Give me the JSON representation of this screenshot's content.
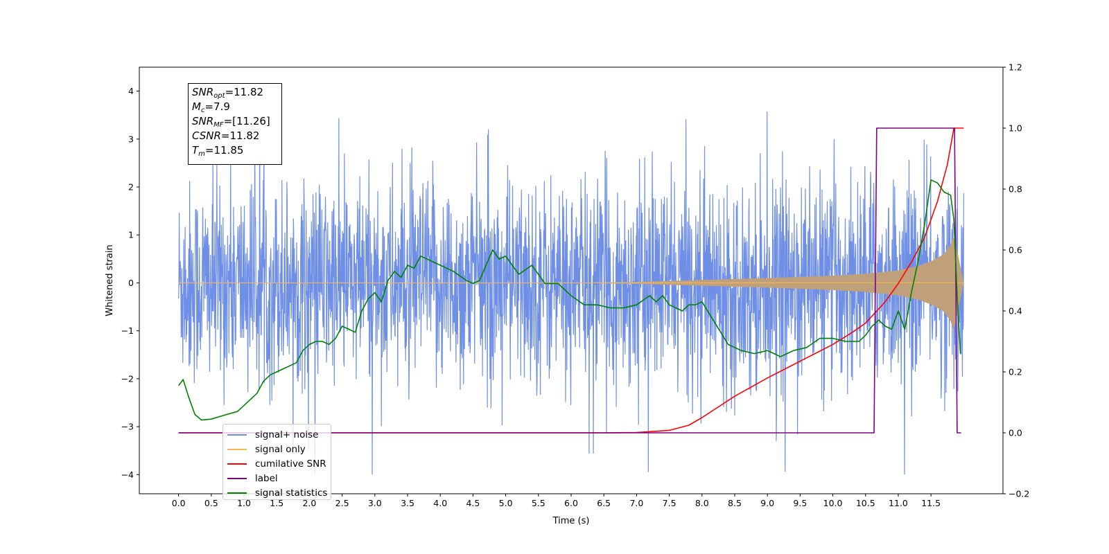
{
  "chart_data": {
    "type": "line",
    "xlabel": "Time (s)",
    "ylabel": "Whitened strain",
    "xlim": [
      -0.6,
      12.6
    ],
    "ylim": [
      -4.4,
      4.5
    ],
    "y2lim": [
      -0.2,
      1.2
    ],
    "xticks": [
      "0.0",
      "0.5",
      "1.0",
      "1.5",
      "2.0",
      "2.5",
      "3.0",
      "3.5",
      "4.0",
      "4.5",
      "5.0",
      "5.5",
      "6.0",
      "6.5",
      "7.0",
      "7.5",
      "8.0",
      "8.5",
      "9.0",
      "9.5",
      "10.0",
      "10.5",
      "11.0",
      "11.5"
    ],
    "yticks": [
      "4",
      "3",
      "2",
      "1",
      "0",
      "−1",
      "−2",
      "−3",
      "−4"
    ],
    "y2ticks": [
      "1.2",
      "1.0",
      "0.8",
      "0.6",
      "0.4",
      "0.2",
      "0.0",
      "−0.2"
    ],
    "colors": {
      "signal_noise": "#6f8fe6",
      "signal_only": "#f5b655",
      "cumulative_snr": "#ff0000",
      "label": "#800080",
      "signal_statistics": "#008000",
      "signal_band": "#c0a07a"
    },
    "annotation": {
      "snr_opt": {
        "var": "SNR",
        "sub": "opt",
        "value": "=11.82"
      },
      "mc": {
        "var": "M",
        "sub": "c",
        "value": "=7.9"
      },
      "snr_mf": {
        "var": "SNR",
        "sub": "MF",
        "value": "=[11.26]"
      },
      "csnr": {
        "var": "CSNR",
        "sub": "",
        "value": "=11.82"
      },
      "tm": {
        "var": "T",
        "sub": "m",
        "value": "=11.85"
      }
    },
    "legend": {
      "placement": "lower-left",
      "entries": [
        "signal+ noise",
        "signal only",
        "cumilative SNR",
        "label",
        "signal statistics"
      ]
    },
    "series": [
      {
        "name": "signal+ noise",
        "axis": "left",
        "style": "noise-envelope",
        "t_range": [
          0.0,
          12.0
        ],
        "band_sigma": 1.0,
        "peak_max": 4.1,
        "peak_min": -4.0
      },
      {
        "name": "signal only",
        "axis": "left",
        "style": "chirp-envelope",
        "x": [
          0.0,
          6.0,
          7.0,
          8.0,
          9.0,
          10.0,
          10.5,
          11.0,
          11.3,
          11.5,
          11.7,
          11.8,
          11.85,
          12.0
        ],
        "amplitude": [
          0.0,
          0.0,
          0.02,
          0.06,
          0.1,
          0.15,
          0.19,
          0.26,
          0.35,
          0.45,
          0.6,
          0.8,
          1.0,
          0.0
        ]
      },
      {
        "name": "cumilative SNR",
        "axis": "right",
        "x": [
          0.0,
          6.5,
          7.0,
          7.5,
          7.8,
          8.0,
          8.5,
          9.0,
          9.5,
          10.0,
          10.3,
          10.5,
          10.8,
          11.0,
          11.2,
          11.4,
          11.6,
          11.75,
          11.85,
          12.0
        ],
        "y": [
          0.0,
          0.0,
          0.001,
          0.008,
          0.025,
          0.05,
          0.12,
          0.18,
          0.235,
          0.29,
          0.33,
          0.36,
          0.43,
          0.49,
          0.56,
          0.64,
          0.76,
          0.88,
          1.0,
          1.0
        ]
      },
      {
        "name": "label",
        "axis": "right",
        "x": [
          0.0,
          10.63,
          10.67,
          11.8,
          11.84,
          11.86,
          11.9,
          11.96
        ],
        "y": [
          0.0,
          0.0,
          1.0,
          1.0,
          1.0,
          1.0,
          0.0,
          0.0
        ]
      },
      {
        "name": "signal statistics",
        "axis": "right",
        "x": [
          0.0,
          0.07,
          0.15,
          0.25,
          0.35,
          0.5,
          0.7,
          0.9,
          1.0,
          1.2,
          1.3,
          1.4,
          1.5,
          1.6,
          1.7,
          1.8,
          1.9,
          2.0,
          2.1,
          2.2,
          2.3,
          2.4,
          2.5,
          2.6,
          2.7,
          2.8,
          2.9,
          3.0,
          3.1,
          3.2,
          3.3,
          3.4,
          3.5,
          3.6,
          3.7,
          3.8,
          3.9,
          4.0,
          4.2,
          4.4,
          4.5,
          4.6,
          4.7,
          4.8,
          4.9,
          5.0,
          5.1,
          5.2,
          5.4,
          5.6,
          5.8,
          6.0,
          6.2,
          6.4,
          6.6,
          6.8,
          7.0,
          7.2,
          7.3,
          7.4,
          7.5,
          7.6,
          7.7,
          7.8,
          7.9,
          8.0,
          8.2,
          8.4,
          8.6,
          8.8,
          9.0,
          9.2,
          9.4,
          9.6,
          9.8,
          10.0,
          10.2,
          10.4,
          10.5,
          10.6,
          10.7,
          10.8,
          10.9,
          11.0,
          11.1,
          11.2,
          11.3,
          11.4,
          11.5,
          11.6,
          11.7,
          11.8,
          11.85,
          11.9,
          11.95
        ],
        "y": [
          0.155,
          0.175,
          0.12,
          0.06,
          0.042,
          0.045,
          0.058,
          0.07,
          0.09,
          0.13,
          0.17,
          0.19,
          0.2,
          0.21,
          0.22,
          0.23,
          0.27,
          0.29,
          0.3,
          0.3,
          0.29,
          0.31,
          0.35,
          0.34,
          0.33,
          0.4,
          0.44,
          0.46,
          0.43,
          0.5,
          0.53,
          0.51,
          0.55,
          0.54,
          0.58,
          0.57,
          0.56,
          0.55,
          0.53,
          0.5,
          0.49,
          0.5,
          0.55,
          0.6,
          0.57,
          0.58,
          0.55,
          0.52,
          0.55,
          0.49,
          0.49,
          0.45,
          0.42,
          0.42,
          0.41,
          0.41,
          0.42,
          0.45,
          0.43,
          0.45,
          0.42,
          0.41,
          0.4,
          0.42,
          0.42,
          0.43,
          0.36,
          0.29,
          0.27,
          0.26,
          0.27,
          0.25,
          0.27,
          0.28,
          0.31,
          0.31,
          0.3,
          0.3,
          0.32,
          0.35,
          0.37,
          0.35,
          0.34,
          0.4,
          0.34,
          0.46,
          0.56,
          0.68,
          0.83,
          0.82,
          0.79,
          0.78,
          0.7,
          0.45,
          0.26
        ]
      }
    ]
  }
}
